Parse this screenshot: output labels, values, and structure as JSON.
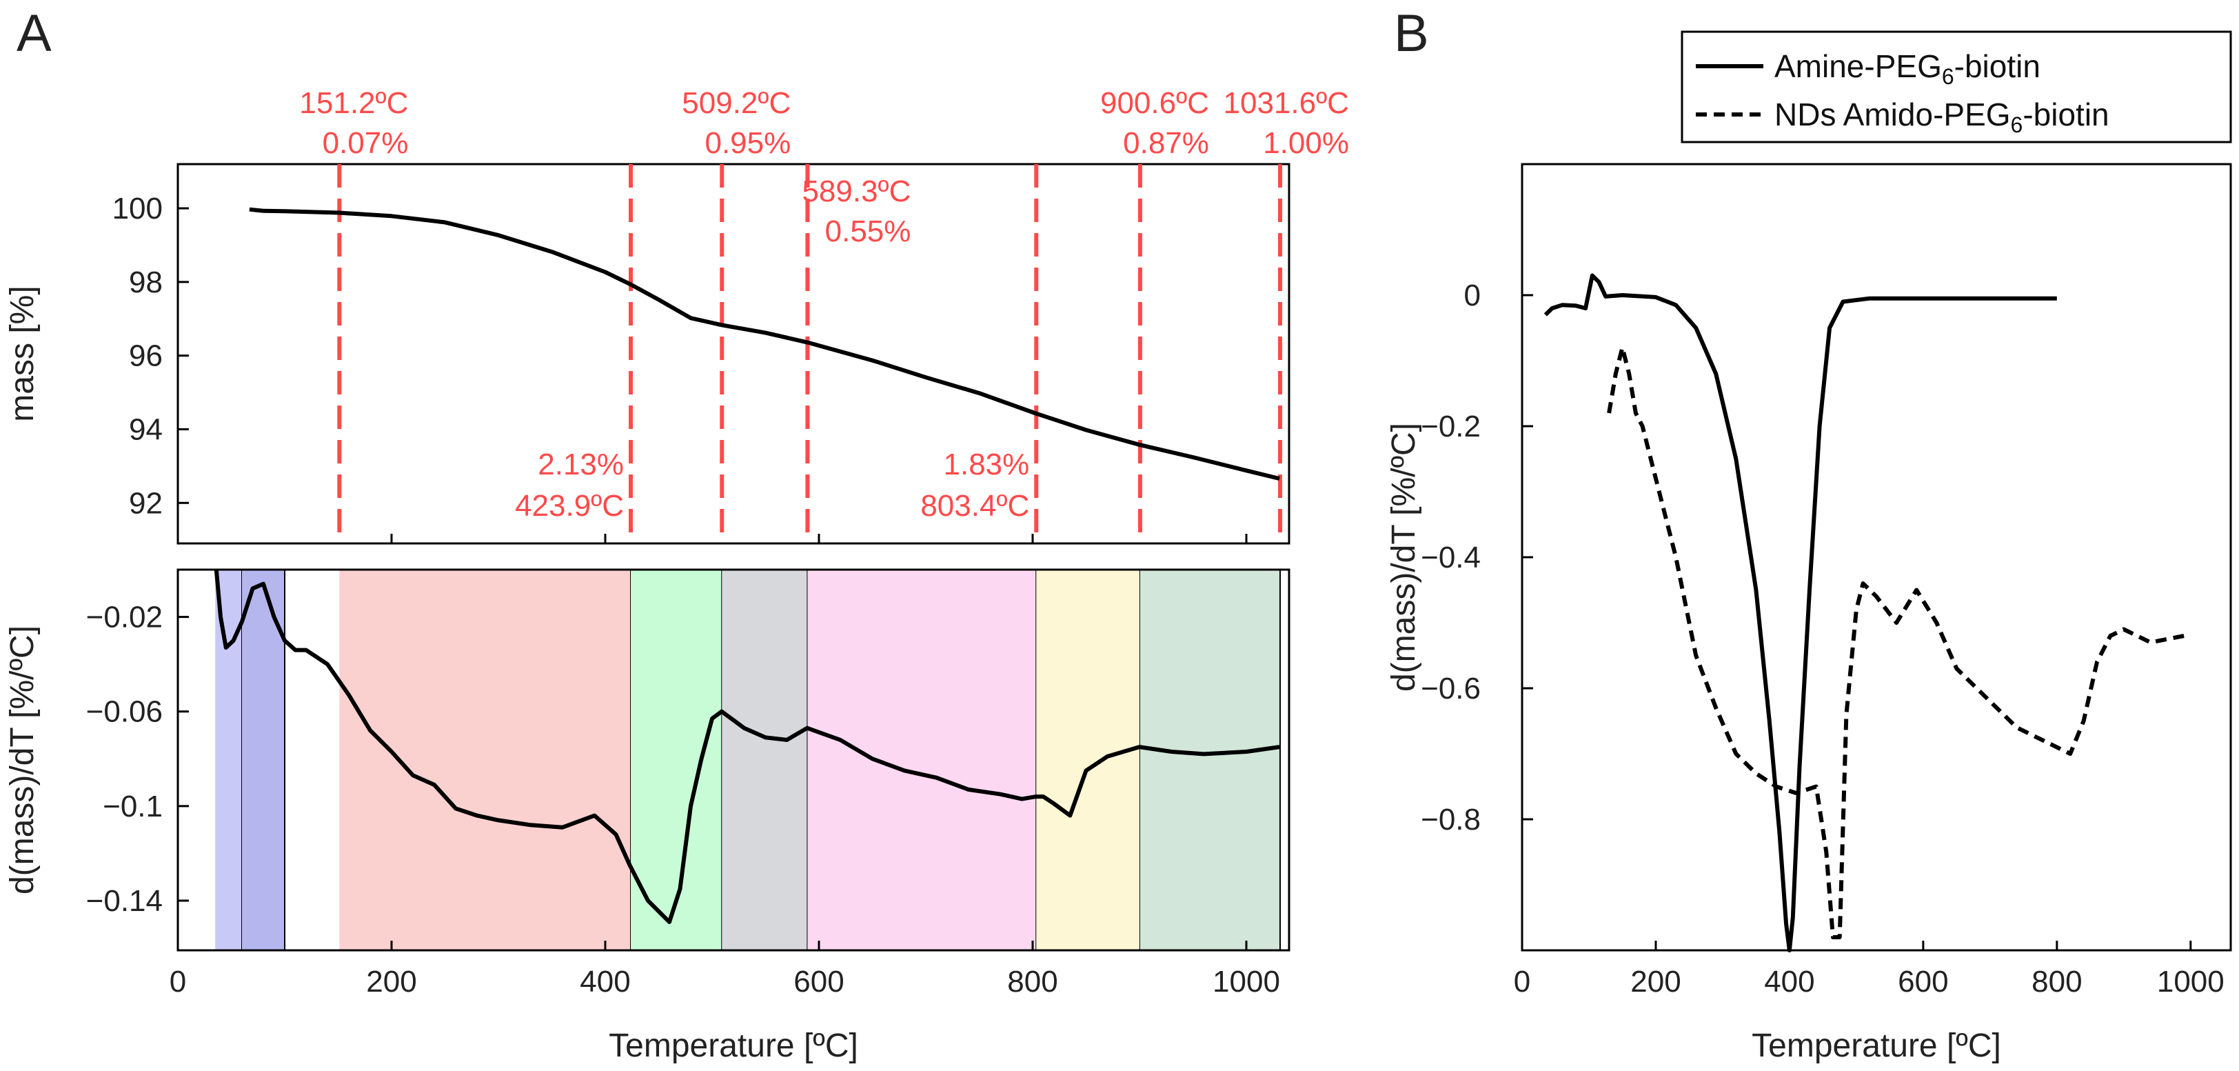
{
  "panels": {
    "A": {
      "letter": "A"
    },
    "B": {
      "letter": "B"
    }
  },
  "colors": {
    "annotation": "#ff4a4a",
    "curve": "#000000"
  },
  "chart_data": [
    {
      "id": "A-top",
      "type": "line",
      "title": "",
      "xlabel": "",
      "ylabel": "mass [%]",
      "xlim": [
        0,
        1040
      ],
      "ylim": [
        90.9,
        101.2
      ],
      "xticks": [
        0,
        200,
        400,
        600,
        800,
        1000
      ],
      "xtick_labels_shown": false,
      "yticks": [
        92,
        94,
        96,
        98,
        100
      ],
      "series": [
        {
          "name": "mass",
          "x": [
            67,
            80,
            100,
            151,
            200,
            250,
            300,
            350,
            400,
            424,
            450,
            480,
            509,
            550,
            589,
            650,
            700,
            750,
            803,
            850,
            900,
            950,
            1000,
            1031
          ],
          "y": [
            99.97,
            99.93,
            99.92,
            99.88,
            99.79,
            99.62,
            99.27,
            98.82,
            98.27,
            97.93,
            97.52,
            97.02,
            96.83,
            96.62,
            96.36,
            95.87,
            95.41,
            94.98,
            94.43,
            93.98,
            93.58,
            93.24,
            92.88,
            92.66
          ]
        }
      ],
      "vlines": [
        {
          "x": 151.2,
          "label_temp": "151.2ºC",
          "label_pct": "0.07%",
          "position": "above-axes"
        },
        {
          "x": 423.9,
          "label_temp": "423.9ºC",
          "label_pct": "2.13%",
          "position": "inside-bottom-left"
        },
        {
          "x": 509.2,
          "label_temp": "509.2ºC",
          "label_pct": "0.95%",
          "position": "above-axes"
        },
        {
          "x": 589.3,
          "label_temp": "589.3ºC",
          "label_pct": "0.55%",
          "position": "inside-top-right"
        },
        {
          "x": 803.4,
          "label_temp": "803.4ºC",
          "label_pct": "1.83%",
          "position": "inside-bottom-left"
        },
        {
          "x": 900.6,
          "label_temp": "900.6ºC",
          "label_pct": "0.87%",
          "position": "above-axes"
        },
        {
          "x": 1031.6,
          "label_temp": "1031.6ºC",
          "label_pct": "1.00%",
          "position": "above-axes"
        }
      ]
    },
    {
      "id": "A-bottom",
      "type": "line",
      "title": "",
      "xlabel": "Temperature [ºC]",
      "ylabel": "d(mass)/dT [%/ºC]",
      "xlim": [
        0,
        1040
      ],
      "ylim": [
        -0.161,
        0.0
      ],
      "xticks": [
        0,
        200,
        400,
        600,
        800,
        1000
      ],
      "yticks": [
        -0.02,
        -0.06,
        -0.1,
        -0.14
      ],
      "ytick_labels": [
        "−0.02",
        "−0.06",
        "−0.1",
        "−0.14"
      ],
      "regions": [
        {
          "from": 35,
          "to": 60,
          "color": "#c9c9f7"
        },
        {
          "from": 60,
          "to": 100,
          "color": "#b5b6ee"
        },
        {
          "from": 151.2,
          "to": 423.9,
          "color": "#fbd1cf"
        },
        {
          "from": 423.9,
          "to": 509.2,
          "color": "#c8fcd6"
        },
        {
          "from": 509.2,
          "to": 589.3,
          "color": "#d7d8dc"
        },
        {
          "from": 589.3,
          "to": 803.4,
          "color": "#fcd8f2"
        },
        {
          "from": 803.4,
          "to": 900.6,
          "color": "#fdf7d6"
        },
        {
          "from": 900.6,
          "to": 1031.6,
          "color": "#d2e6d9"
        }
      ],
      "series": [
        {
          "name": "d(mass)/dT",
          "x": [
            36,
            40,
            45,
            52,
            60,
            70,
            80,
            90,
            100,
            110,
            120,
            140,
            160,
            180,
            200,
            220,
            240,
            260,
            280,
            300,
            330,
            360,
            390,
            410,
            423,
            440,
            460,
            470,
            480,
            490,
            500,
            509,
            530,
            550,
            570,
            589,
            620,
            650,
            680,
            710,
            740,
            770,
            790,
            803,
            810,
            820,
            835,
            850,
            870,
            900,
            930,
            960,
            1000,
            1031
          ],
          "y": [
            0.0,
            -0.02,
            -0.033,
            -0.03,
            -0.022,
            -0.008,
            -0.006,
            -0.02,
            -0.03,
            -0.034,
            -0.034,
            -0.04,
            -0.053,
            -0.068,
            -0.077,
            -0.087,
            -0.091,
            -0.101,
            -0.104,
            -0.106,
            -0.108,
            -0.109,
            -0.104,
            -0.112,
            -0.125,
            -0.14,
            -0.149,
            -0.135,
            -0.1,
            -0.08,
            -0.063,
            -0.06,
            -0.067,
            -0.071,
            -0.072,
            -0.067,
            -0.072,
            -0.08,
            -0.085,
            -0.088,
            -0.093,
            -0.095,
            -0.097,
            -0.096,
            -0.096,
            -0.099,
            -0.104,
            -0.085,
            -0.079,
            -0.075,
            -0.077,
            -0.078,
            -0.077,
            -0.075
          ]
        }
      ]
    },
    {
      "id": "B",
      "type": "line",
      "title": "",
      "xlabel": "Temperature [ºC]",
      "ylabel": "d(mass)/dT  [%/ºC]",
      "xlim": [
        0,
        1060
      ],
      "ylim": [
        -1.0,
        0.2
      ],
      "xticks": [
        0,
        200,
        400,
        600,
        800,
        1000
      ],
      "yticks": [
        0,
        -0.2,
        -0.4,
        -0.6,
        -0.8
      ],
      "ytick_labels": [
        "0",
        "−0.2",
        "−0.4",
        "−0.6",
        "−0.8"
      ],
      "legend": "top-right",
      "series": [
        {
          "name": "Amine-PEG6-biotin",
          "legend_main": "Amine-PEG",
          "legend_sub": "6",
          "legend_tail": "-biotin",
          "style": "solid",
          "x": [
            35,
            45,
            60,
            80,
            95,
            105,
            115,
            125,
            150,
            200,
            230,
            260,
            290,
            320,
            350,
            370,
            385,
            395,
            400,
            405,
            415,
            430,
            445,
            460,
            480,
            520,
            600,
            700,
            800
          ],
          "y": [
            -0.03,
            -0.02,
            -0.015,
            -0.016,
            -0.02,
            0.03,
            0.02,
            -0.002,
            0.0,
            -0.003,
            -0.015,
            -0.05,
            -0.12,
            -0.25,
            -0.45,
            -0.65,
            -0.82,
            -0.96,
            -1.0,
            -0.95,
            -0.72,
            -0.45,
            -0.2,
            -0.05,
            -0.01,
            -0.005,
            -0.005,
            -0.005,
            -0.005
          ]
        },
        {
          "name": "NDs Amido-PEG6-biotin",
          "legend_main": "NDs Amido-PEG",
          "legend_sub": "6",
          "legend_tail": "-biotin",
          "style": "dashed",
          "x": [
            130,
            140,
            150,
            160,
            170,
            180,
            200,
            230,
            260,
            290,
            320,
            350,
            380,
            410,
            440,
            455,
            465,
            475,
            485,
            500,
            510,
            530,
            560,
            590,
            620,
            650,
            700,
            740,
            780,
            820,
            840,
            860,
            880,
            900,
            940,
            990
          ],
          "y": [
            -0.18,
            -0.12,
            -0.08,
            -0.12,
            -0.18,
            -0.2,
            -0.28,
            -0.4,
            -0.55,
            -0.63,
            -0.7,
            -0.73,
            -0.75,
            -0.76,
            -0.75,
            -0.85,
            -0.98,
            -0.98,
            -0.64,
            -0.48,
            -0.44,
            -0.46,
            -0.5,
            -0.45,
            -0.5,
            -0.57,
            -0.62,
            -0.66,
            -0.68,
            -0.7,
            -0.65,
            -0.56,
            -0.52,
            -0.51,
            -0.53,
            -0.52
          ]
        }
      ]
    }
  ]
}
